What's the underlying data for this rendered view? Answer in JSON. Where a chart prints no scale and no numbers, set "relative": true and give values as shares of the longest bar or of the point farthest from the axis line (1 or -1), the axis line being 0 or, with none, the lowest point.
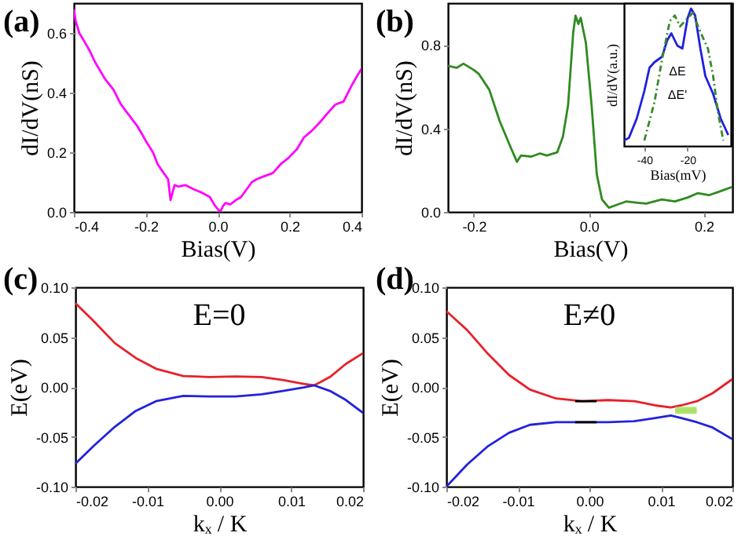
{
  "chart_data": [
    {
      "type": "line",
      "title": "(a)",
      "xlabel": "Bias(V)",
      "ylabel": "dI/dV(nS)",
      "x": [
        -0.4,
        -0.395,
        -0.385,
        -0.37,
        -0.356,
        -0.34,
        -0.313,
        -0.29,
        -0.269,
        -0.25,
        -0.225,
        -0.21,
        -0.196,
        -0.18,
        -0.167,
        -0.15,
        -0.138,
        -0.131,
        -0.12,
        -0.109,
        -0.09,
        -0.065,
        -0.045,
        -0.022,
        -0.007,
        0.007,
        0.015,
        0.022,
        0.035,
        0.051,
        0.065,
        0.08,
        0.095,
        0.109,
        0.13,
        0.153,
        0.175,
        0.196,
        0.22,
        0.24,
        0.26,
        0.284,
        0.305,
        0.327,
        0.35,
        0.371,
        0.385,
        0.4
      ],
      "series": [
        {
          "color": "#ff00ff",
          "values": [
            0.68,
            0.64,
            0.6,
            0.57,
            0.54,
            0.5,
            0.445,
            0.41,
            0.36,
            0.33,
            0.29,
            0.26,
            0.23,
            0.2,
            0.16,
            0.13,
            0.11,
            0.04,
            0.09,
            0.085,
            0.09,
            0.075,
            0.065,
            0.05,
            0.02,
            0.0,
            0.02,
            0.03,
            0.025,
            0.04,
            0.05,
            0.075,
            0.1,
            0.11,
            0.12,
            0.13,
            0.16,
            0.18,
            0.21,
            0.25,
            0.27,
            0.3,
            0.33,
            0.36,
            0.37,
            0.42,
            0.45,
            0.48
          ]
        }
      ],
      "xlim": [
        -0.4,
        0.4
      ],
      "xticks": [
        {
          "value": -0.4,
          "label": "-0.4"
        },
        {
          "value": -0.2,
          "label": "-0.2"
        },
        {
          "value": 0,
          "label": "0.0"
        },
        {
          "value": 0.2,
          "label": "0.2"
        },
        {
          "value": 0.4,
          "label": "0.4"
        }
      ],
      "ylim": [
        0,
        0.7
      ],
      "yticks": [
        {
          "value": 0,
          "label": "0.0"
        },
        {
          "value": 0.2,
          "label": "0.2"
        },
        {
          "value": 0.4,
          "label": "0.4"
        },
        {
          "value": 0.6,
          "label": "0.6"
        }
      ]
    },
    {
      "type": "line",
      "title": "(b)",
      "xlabel": "Bias(V)",
      "ylabel": "dI/dV(nS)",
      "x": [
        -0.245,
        -0.23,
        -0.218,
        -0.2,
        -0.191,
        -0.173,
        -0.155,
        -0.136,
        -0.125,
        -0.118,
        -0.1,
        -0.085,
        -0.073,
        -0.055,
        -0.045,
        -0.036,
        -0.027,
        -0.023,
        -0.018,
        -0.014,
        -0.005,
        0.005,
        0.014,
        0.023,
        0.035,
        0.045,
        0.065,
        0.082,
        0.1,
        0.127,
        0.15,
        0.173,
        0.19,
        0.209,
        0.23,
        0.25
      ],
      "series": [
        {
          "color": "#2e8b1e",
          "values": [
            0.7,
            0.69,
            0.71,
            0.68,
            0.66,
            0.585,
            0.435,
            0.31,
            0.24,
            0.27,
            0.265,
            0.28,
            0.27,
            0.285,
            0.36,
            0.51,
            0.86,
            0.94,
            0.9,
            0.93,
            0.81,
            0.51,
            0.18,
            0.06,
            0.02,
            0.03,
            0.05,
            0.045,
            0.04,
            0.06,
            0.05,
            0.07,
            0.09,
            0.08,
            0.1,
            0.12
          ]
        }
      ],
      "xlim": [
        -0.245,
        0.25
      ],
      "xticks": [
        {
          "value": -0.2,
          "label": "-0.2"
        },
        {
          "value": 0,
          "label": "0.0"
        },
        {
          "value": 0.2,
          "label": "0.2"
        }
      ],
      "ylim": [
        0,
        1.0
      ],
      "yticks": [
        {
          "value": 0,
          "label": "0.0"
        },
        {
          "value": 0.4,
          "label": "0.4"
        },
        {
          "value": 0.8,
          "label": "0.8"
        }
      ]
    },
    {
      "type": "line",
      "relative": true,
      "xlabel": "Bias(mV)",
      "ylabel": "dI/dV(a.u.)",
      "series": [
        {
          "color": "#1f1fe0",
          "x": [
            -49.4,
            -47.1,
            -43.5,
            -40,
            -37.6,
            -35.3,
            -31.8,
            -29.4,
            -27.5,
            -24.7,
            -22.4,
            -20,
            -18.4,
            -16.5,
            -14.1,
            -11.8,
            -8.2,
            -4.7,
            -1.2
          ],
          "values": [
            0.04,
            0.06,
            0.2,
            0.4,
            0.57,
            0.61,
            0.65,
            0.77,
            0.82,
            0.73,
            0.71,
            0.93,
            1.0,
            0.95,
            0.71,
            0.51,
            0.38,
            0.2,
            0.08
          ]
        },
        {
          "color": "#3a8a2a",
          "line_style": "dashed",
          "x": [
            -40,
            -35.3,
            -31.8,
            -28.2,
            -25.9,
            -23.5,
            -21.2,
            -17.6,
            -14.1,
            -10.6,
            -8.2,
            -5.9,
            -3.5
          ],
          "values": [
            0.04,
            0.32,
            0.63,
            0.91,
            0.95,
            0.87,
            0.91,
            0.97,
            0.83,
            0.71,
            0.51,
            0.24,
            0.04
          ]
        }
      ],
      "annotations": [
        "ΔE",
        "ΔE'"
      ],
      "xlim": [
        -49.4,
        0
      ],
      "xticks": [
        -40,
        -20
      ]
    },
    {
      "type": "line",
      "title": "(c)",
      "xlabel": "kₓ / K",
      "ylabel": "E(eV)",
      "annotations": [
        "E=0"
      ],
      "x": [
        -0.02,
        -0.01745,
        -0.01453,
        -0.0116,
        -0.00869,
        -0.005,
        -0.00139,
        0.00226,
        0.00591,
        0.00883,
        0.01175,
        0.01321,
        0.0154,
        0.01759,
        0.02
      ],
      "series": [
        {
          "color": "#e8202a",
          "values": [
            0.084,
            0.066,
            0.044,
            0.029,
            0.018,
            0.011,
            0.01,
            0.0106,
            0.01,
            0.007,
            0.003,
            0.0016,
            0.01,
            0.023,
            0.034
          ]
        },
        {
          "color": "#2222dd",
          "values": [
            -0.077,
            -0.059,
            -0.04,
            -0.024,
            -0.014,
            -0.009,
            -0.0095,
            -0.0095,
            -0.0074,
            -0.004,
            -0.0005,
            0.0016,
            -0.004,
            -0.013,
            -0.026
          ]
        }
      ],
      "xlim": [
        -0.02,
        0.02
      ],
      "xticks": [
        {
          "value": -0.02,
          "label": "-0.02"
        },
        {
          "value": -0.01,
          "label": "-0.01"
        },
        {
          "value": 0,
          "label": "0.00"
        },
        {
          "value": 0.01,
          "label": "0.01"
        },
        {
          "value": 0.02,
          "label": "0.02"
        }
      ],
      "ylim": [
        -0.1,
        0.1
      ],
      "yticks": [
        {
          "value": -0.1,
          "label": "-0.10"
        },
        {
          "value": -0.05,
          "label": "-0.05"
        },
        {
          "value": 0,
          "label": "0.00"
        },
        {
          "value": 0.05,
          "label": "0.05"
        },
        {
          "value": 0.1,
          "label": "0.10"
        }
      ]
    },
    {
      "type": "line",
      "title": "(d)",
      "xlabel": "kₓ / K",
      "ylabel": "E(eV)",
      "annotations": [
        "E≠0"
      ],
      "x": [
        -0.02,
        -0.01708,
        -0.01416,
        -0.01124,
        -0.00832,
        -0.00467,
        -0.00102,
        0.00263,
        0.00628,
        0.0092,
        0.01139,
        0.01285,
        0.01504,
        0.01723,
        0.02
      ],
      "series": [
        {
          "color": "#e8202a",
          "values": [
            0.076,
            0.057,
            0.033,
            0.012,
            -0.0026,
            -0.0116,
            -0.0143,
            -0.0132,
            -0.0143,
            -0.0185,
            -0.0206,
            -0.0185,
            -0.0143,
            -0.0063,
            0.0079
          ]
        },
        {
          "color": "#2222dd",
          "values": [
            -0.1,
            -0.0778,
            -0.0593,
            -0.046,
            -0.038,
            -0.0354,
            -0.0354,
            -0.0354,
            -0.0344,
            -0.0312,
            -0.0286,
            -0.0312,
            -0.0354,
            -0.0407,
            -0.0524
          ]
        },
        {
          "color": "#000000",
          "x": [
            -0.002,
            0.001
          ],
          "values": [
            -0.0143,
            -0.0143
          ]
        },
        {
          "color": "#000000",
          "x": [
            -0.002,
            0.001
          ],
          "values": [
            -0.0354,
            -0.0354
          ]
        },
        {
          "color": "#a8e060",
          "x": [
            0.012,
            0.015
          ],
          "values": [
            -0.0235,
            -0.0235
          ],
          "lower": [
            -0.027,
            -0.027
          ],
          "upper": [
            -0.02,
            -0.02
          ]
        }
      ],
      "xlim": [
        -0.02,
        0.02
      ],
      "xticks": [
        {
          "value": -0.02,
          "label": "-0.02"
        },
        {
          "value": -0.01,
          "label": "-0.01"
        },
        {
          "value": 0,
          "label": "0.00"
        },
        {
          "value": 0.01,
          "label": "0.01"
        },
        {
          "value": 0.02,
          "label": "0.02"
        }
      ],
      "ylim": [
        -0.1,
        0.1
      ],
      "yticks": [
        {
          "value": -0.1,
          "label": "-0.10"
        },
        {
          "value": -0.05,
          "label": "-0.05"
        },
        {
          "value": 0,
          "label": "0.00"
        },
        {
          "value": 0.05,
          "label": "0.05"
        },
        {
          "value": 0.1,
          "label": "0.10"
        }
      ]
    }
  ]
}
